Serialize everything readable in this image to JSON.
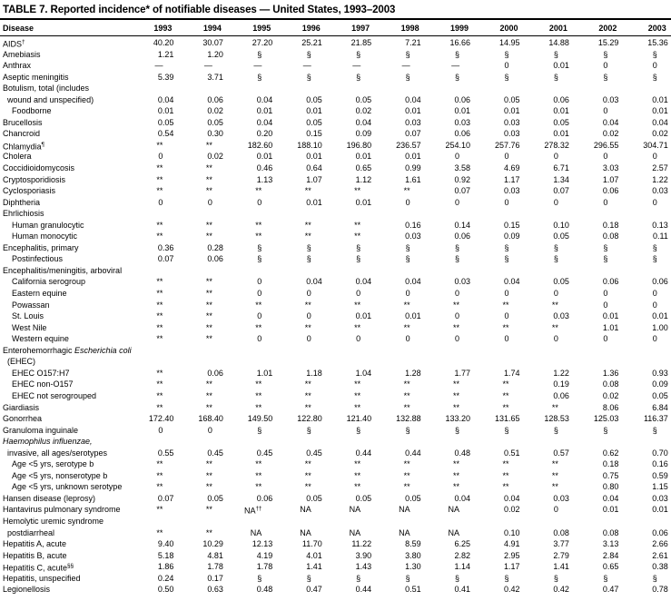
{
  "title": "TABLE 7. Reported incidence* of notifiable diseases — United States, 1993–2003",
  "colors": {
    "text": "#000000",
    "background": "#ffffff"
  },
  "table": {
    "disease_header": "Disease",
    "years": [
      "1993",
      "1994",
      "1995",
      "1996",
      "1997",
      "1998",
      "1999",
      "2000",
      "2001",
      "2002",
      "2003"
    ],
    "rows": [
      {
        "n": "AIDS^†",
        "i": 0,
        "v": [
          "40.20",
          "30.07",
          "27.20",
          "25.21",
          "21.85",
          "7.21",
          "16.66",
          "14.95",
          "14.88",
          "15.29",
          "15.36"
        ]
      },
      {
        "n": "Amebiasis",
        "i": 0,
        "v": [
          "1.21",
          "1.20",
          "§",
          "§",
          "§",
          "§",
          "§",
          "§",
          "§",
          "§",
          "§"
        ]
      },
      {
        "n": "Anthrax",
        "i": 0,
        "v": [
          "—",
          "—",
          "—",
          "—",
          "—",
          "—",
          "—",
          "0",
          "0.01",
          "0",
          "0"
        ]
      },
      {
        "n": "Aseptic meningitis",
        "i": 0,
        "v": [
          "5.39",
          "3.71",
          "§",
          "§",
          "§",
          "§",
          "§",
          "§",
          "§",
          "§",
          "§"
        ]
      },
      {
        "n": "Botulism, total (includes",
        "i": 0,
        "v": null
      },
      {
        "n": "wound and unspecified)",
        "i": 1,
        "v": [
          "0.04",
          "0.06",
          "0.04",
          "0.05",
          "0.05",
          "0.04",
          "0.06",
          "0.05",
          "0.06",
          "0.03",
          "0.01"
        ]
      },
      {
        "n": "Foodborne",
        "i": 2,
        "v": [
          "0.01",
          "0.02",
          "0.01",
          "0.01",
          "0.02",
          "0.01",
          "0.01",
          "0.01",
          "0.01",
          "0",
          "0.01"
        ]
      },
      {
        "n": "Brucellosis",
        "i": 0,
        "v": [
          "0.05",
          "0.05",
          "0.04",
          "0.05",
          "0.04",
          "0.03",
          "0.03",
          "0.03",
          "0.05",
          "0.04",
          "0.04"
        ]
      },
      {
        "n": "Chancroid",
        "i": 0,
        "v": [
          "0.54",
          "0.30",
          "0.20",
          "0.15",
          "0.09",
          "0.07",
          "0.06",
          "0.03",
          "0.01",
          "0.02",
          "0.02"
        ]
      },
      {
        "n": "Chlamydia^¶",
        "i": 0,
        "v": [
          "**",
          "**",
          "182.60",
          "188.10",
          "196.80",
          "236.57",
          "254.10",
          "257.76",
          "278.32",
          "296.55",
          "304.71"
        ]
      },
      {
        "n": "Cholera",
        "i": 0,
        "v": [
          "0",
          "0.02",
          "0.01",
          "0.01",
          "0.01",
          "0.01",
          "0",
          "0",
          "0",
          "0",
          "0"
        ]
      },
      {
        "n": "Coccidioidomycosis",
        "i": 0,
        "v": [
          "**",
          "**",
          "0.46",
          "0.64",
          "0.65",
          "0.99",
          "3.58",
          "4.69",
          "6.71",
          "3.03",
          "2.57"
        ]
      },
      {
        "n": "Cryptosporidiosis",
        "i": 0,
        "v": [
          "**",
          "**",
          "1.13",
          "1.07",
          "1.12",
          "1.61",
          "0.92",
          "1.17",
          "1.34",
          "1.07",
          "1.22"
        ]
      },
      {
        "n": "Cyclosporiasis",
        "i": 0,
        "v": [
          "**",
          "**",
          "**",
          "**",
          "**",
          "**",
          "0.07",
          "0.03",
          "0.07",
          "0.06",
          "0.03"
        ]
      },
      {
        "n": "Diphtheria",
        "i": 0,
        "v": [
          "0",
          "0",
          "0",
          "0.01",
          "0.01",
          "0",
          "0",
          "0",
          "0",
          "0",
          "0"
        ]
      },
      {
        "n": "Ehrlichiosis",
        "i": 0,
        "v": null
      },
      {
        "n": "Human granulocytic",
        "i": 2,
        "v": [
          "**",
          "**",
          "**",
          "**",
          "**",
          "0.16",
          "0.14",
          "0.15",
          "0.10",
          "0.18",
          "0.13"
        ]
      },
      {
        "n": "Human monocytic",
        "i": 2,
        "v": [
          "**",
          "**",
          "**",
          "**",
          "**",
          "0.03",
          "0.06",
          "0.09",
          "0.05",
          "0.08",
          "0.11"
        ]
      },
      {
        "n": "Encephalitis, primary",
        "i": 0,
        "v": [
          "0.36",
          "0.28",
          "§",
          "§",
          "§",
          "§",
          "§",
          "§",
          "§",
          "§",
          "§"
        ]
      },
      {
        "n": "Postinfectious",
        "i": 2,
        "v": [
          "0.07",
          "0.06",
          "§",
          "§",
          "§",
          "§",
          "§",
          "§",
          "§",
          "§",
          "§"
        ]
      },
      {
        "n": "Encephalitis/meningitis, arboviral",
        "i": 0,
        "v": null
      },
      {
        "n": "California serogroup",
        "i": 2,
        "v": [
          "**",
          "**",
          "0",
          "0.04",
          "0.04",
          "0.04",
          "0.03",
          "0.04",
          "0.05",
          "0.06",
          "0.06"
        ]
      },
      {
        "n": "Eastern equine",
        "i": 2,
        "v": [
          "**",
          "**",
          "0",
          "0",
          "0",
          "0",
          "0",
          "0",
          "0",
          "0",
          "0"
        ]
      },
      {
        "n": "Powassan",
        "i": 2,
        "v": [
          "**",
          "**",
          "**",
          "**",
          "**",
          "**",
          "**",
          "**",
          "**",
          "0",
          "0"
        ]
      },
      {
        "n": "St. Louis",
        "i": 2,
        "v": [
          "**",
          "**",
          "0",
          "0",
          "0.01",
          "0.01",
          "0",
          "0",
          "0.03",
          "0.01",
          "0.01"
        ]
      },
      {
        "n": "West Nile",
        "i": 2,
        "v": [
          "**",
          "**",
          "**",
          "**",
          "**",
          "**",
          "**",
          "**",
          "**",
          "1.01",
          "1.00"
        ]
      },
      {
        "n": "Western equine",
        "i": 2,
        "v": [
          "**",
          "**",
          "0",
          "0",
          "0",
          "0",
          "0",
          "0",
          "0",
          "0",
          "0"
        ]
      },
      {
        "n": "Enterohemorrhagic _Escherichia coli_",
        "i": 0,
        "v": null
      },
      {
        "n": "(EHEC)",
        "i": 1,
        "v": null
      },
      {
        "n": "EHEC O157:H7",
        "i": 2,
        "v": [
          "**",
          "0.06",
          "1.01",
          "1.18",
          "1.04",
          "1.28",
          "1.77",
          "1.74",
          "1.22",
          "1.36",
          "0.93"
        ]
      },
      {
        "n": "EHEC non-O157",
        "i": 2,
        "v": [
          "**",
          "**",
          "**",
          "**",
          "**",
          "**",
          "**",
          "**",
          "0.19",
          "0.08",
          "0.09"
        ]
      },
      {
        "n": "EHEC not serogrouped",
        "i": 2,
        "v": [
          "**",
          "**",
          "**",
          "**",
          "**",
          "**",
          "**",
          "**",
          "0.06",
          "0.02",
          "0.05"
        ]
      },
      {
        "n": "Giardiasis",
        "i": 0,
        "v": [
          "**",
          "**",
          "**",
          "**",
          "**",
          "**",
          "**",
          "**",
          "**",
          "8.06",
          "6.84"
        ]
      },
      {
        "n": "Gonorrhea",
        "i": 0,
        "v": [
          "172.40",
          "168.40",
          "149.50",
          "122.80",
          "121.40",
          "132.88",
          "133.20",
          "131.65",
          "128.53",
          "125.03",
          "116.37"
        ]
      },
      {
        "n": "Granuloma inguinale",
        "i": 0,
        "v": [
          "0",
          "0",
          "§",
          "§",
          "§",
          "§",
          "§",
          "§",
          "§",
          "§",
          "§"
        ]
      },
      {
        "n": "_Haemophilus influenzae,_",
        "i": 0,
        "v": null
      },
      {
        "n": "invasive, all ages/serotypes",
        "i": 1,
        "v": [
          "0.55",
          "0.45",
          "0.45",
          "0.45",
          "0.44",
          "0.44",
          "0.48",
          "0.51",
          "0.57",
          "0.62",
          "0.70"
        ]
      },
      {
        "n": "Age <5 yrs, serotype b",
        "i": 2,
        "v": [
          "**",
          "**",
          "**",
          "**",
          "**",
          "**",
          "**",
          "**",
          "**",
          "0.18",
          "0.16"
        ]
      },
      {
        "n": "Age <5 yrs, nonserotype b",
        "i": 2,
        "v": [
          "**",
          "**",
          "**",
          "**",
          "**",
          "**",
          "**",
          "**",
          "**",
          "0.75",
          "0.59"
        ]
      },
      {
        "n": "Age <5 yrs, unknown serotype",
        "i": 2,
        "v": [
          "**",
          "**",
          "**",
          "**",
          "**",
          "**",
          "**",
          "**",
          "**",
          "0.80",
          "1.15"
        ]
      },
      {
        "n": "Hansen disease (leprosy)",
        "i": 0,
        "v": [
          "0.07",
          "0.05",
          "0.06",
          "0.05",
          "0.05",
          "0.05",
          "0.04",
          "0.04",
          "0.03",
          "0.04",
          "0.03"
        ]
      },
      {
        "n": "Hantavirus pulmonary syndrome",
        "i": 0,
        "v": [
          "**",
          "**",
          "NA^††",
          "NA",
          "NA",
          "NA",
          "NA",
          "0.02",
          "0",
          "0.01",
          "0.01"
        ]
      },
      {
        "n": "Hemolytic uremic syndrome",
        "i": 0,
        "v": null
      },
      {
        "n": "postdiarrheal",
        "i": 1,
        "v": [
          "**",
          "**",
          "NA",
          "NA",
          "NA",
          "NA",
          "NA",
          "0.10",
          "0.08",
          "0.08",
          "0.06"
        ]
      },
      {
        "n": "Hepatitis A, acute",
        "i": 0,
        "v": [
          "9.40",
          "10.29",
          "12.13",
          "11.70",
          "11.22",
          "8.59",
          "6.25",
          "4.91",
          "3.77",
          "3.13",
          "2.66"
        ]
      },
      {
        "n": "Hepatitis B, acute",
        "i": 0,
        "v": [
          "5.18",
          "4.81",
          "4.19",
          "4.01",
          "3.90",
          "3.80",
          "2.82",
          "2.95",
          "2.79",
          "2.84",
          "2.61"
        ]
      },
      {
        "n": "Hepatitis C, acute^§§",
        "i": 0,
        "v": [
          "1.86",
          "1.78",
          "1.78",
          "1.41",
          "1.43",
          "1.30",
          "1.14",
          "1.17",
          "1.41",
          "0.65",
          "0.38"
        ]
      },
      {
        "n": "Hepatitis, unspecified",
        "i": 0,
        "v": [
          "0.24",
          "0.17",
          "§",
          "§",
          "§",
          "§",
          "§",
          "§",
          "§",
          "§",
          "§"
        ]
      },
      {
        "n": "Legionellosis",
        "i": 0,
        "v": [
          "0.50",
          "0.63",
          "0.48",
          "0.47",
          "0.44",
          "0.51",
          "0.41",
          "0.42",
          "0.42",
          "0.47",
          "0.78"
        ]
      }
    ]
  }
}
